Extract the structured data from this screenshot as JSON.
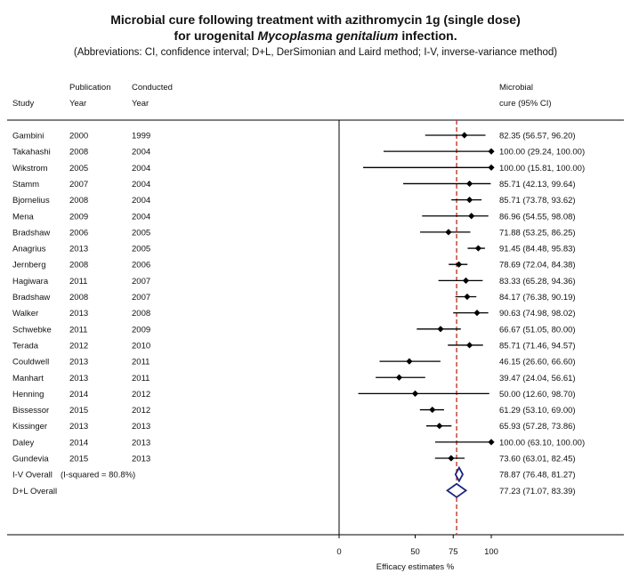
{
  "title_line1": "Microbial cure following treatment with azithromycin 1g (single dose)",
  "title_line2_pre": "for urogenital ",
  "title_line2_italic": "Mycoplasma genitalium",
  "title_line2_post": " infection.",
  "subtitle": "(Abbreviations: CI, confidence interval; D+L, DerSimonian and Laird method; I-V, inverse-variance method)",
  "headers": {
    "study": "Study",
    "pub_line1": "Publication",
    "pub_line2": "Year",
    "cond_line1": "Conducted",
    "cond_line2": "Year",
    "ci_line1": "Microbial",
    "ci_line2": "cure (95% CI)"
  },
  "chart_data": {
    "type": "forest",
    "xlabel": "Efficacy estimates %",
    "xticks": [
      0,
      50,
      75,
      100
    ],
    "xlim": [
      0,
      100
    ],
    "reference_line": 77.23,
    "studies": [
      {
        "study": "Gambini",
        "pub": "2000",
        "cond": "1999",
        "est": 82.35,
        "lo": 56.57,
        "hi": 96.2,
        "label": "82.35 (56.57, 96.20)"
      },
      {
        "study": "Takahashi",
        "pub": "2008",
        "cond": "2004",
        "est": 100.0,
        "lo": 29.24,
        "hi": 100.0,
        "label": "100.00 (29.24, 100.00)"
      },
      {
        "study": "Wikstrom",
        "pub": "2005",
        "cond": "2004",
        "est": 100.0,
        "lo": 15.81,
        "hi": 100.0,
        "label": "100.00 (15.81, 100.00)"
      },
      {
        "study": "Stamm",
        "pub": "2007",
        "cond": "2004",
        "est": 85.71,
        "lo": 42.13,
        "hi": 99.64,
        "label": "85.71 (42.13, 99.64)"
      },
      {
        "study": "Bjornelius",
        "pub": "2008",
        "cond": "2004",
        "est": 85.71,
        "lo": 73.78,
        "hi": 93.62,
        "label": "85.71 (73.78, 93.62)"
      },
      {
        "study": "Mena",
        "pub": "2009",
        "cond": "2004",
        "est": 86.96,
        "lo": 54.55,
        "hi": 98.08,
        "label": "86.96 (54.55, 98.08)"
      },
      {
        "study": "Bradshaw",
        "pub": "2006",
        "cond": "2005",
        "est": 71.88,
        "lo": 53.25,
        "hi": 86.25,
        "label": "71.88 (53.25, 86.25)"
      },
      {
        "study": "Anagrius",
        "pub": "2013",
        "cond": "2005",
        "est": 91.45,
        "lo": 84.48,
        "hi": 95.83,
        "label": "91.45 (84.48, 95.83)"
      },
      {
        "study": "Jernberg",
        "pub": "2008",
        "cond": "2006",
        "est": 78.69,
        "lo": 72.04,
        "hi": 84.38,
        "label": "78.69 (72.04, 84.38)"
      },
      {
        "study": "Hagiwara",
        "pub": "2011",
        "cond": "2007",
        "est": 83.33,
        "lo": 65.28,
        "hi": 94.36,
        "label": "83.33 (65.28, 94.36)"
      },
      {
        "study": "Bradshaw",
        "pub": "2008",
        "cond": "2007",
        "est": 84.17,
        "lo": 76.38,
        "hi": 90.19,
        "label": "84.17 (76.38, 90.19)"
      },
      {
        "study": "Walker",
        "pub": "2013",
        "cond": "2008",
        "est": 90.63,
        "lo": 74.98,
        "hi": 98.02,
        "label": "90.63 (74.98, 98.02)"
      },
      {
        "study": "Schwebke",
        "pub": "2011",
        "cond": "2009",
        "est": 66.67,
        "lo": 51.05,
        "hi": 80.0,
        "label": "66.67 (51.05, 80.00)"
      },
      {
        "study": "Terada",
        "pub": "2012",
        "cond": "2010",
        "est": 85.71,
        "lo": 71.46,
        "hi": 94.57,
        "label": "85.71 (71.46, 94.57)"
      },
      {
        "study": "Couldwell",
        "pub": "2013",
        "cond": "2011",
        "est": 46.15,
        "lo": 26.6,
        "hi": 66.6,
        "label": "46.15 (26.60, 66.60)"
      },
      {
        "study": "Manhart",
        "pub": "2013",
        "cond": "2011",
        "est": 39.47,
        "lo": 24.04,
        "hi": 56.61,
        "label": "39.47 (24.04, 56.61)"
      },
      {
        "study": "Henning",
        "pub": "2014",
        "cond": "2012",
        "est": 50.0,
        "lo": 12.6,
        "hi": 98.7,
        "label": "50.00 (12.60, 98.70)"
      },
      {
        "study": "Bissessor",
        "pub": "2015",
        "cond": "2012",
        "est": 61.29,
        "lo": 53.1,
        "hi": 69.0,
        "label": "61.29 (53.10, 69.00)"
      },
      {
        "study": "Kissinger",
        "pub": "2013",
        "cond": "2013",
        "est": 65.93,
        "lo": 57.28,
        "hi": 73.86,
        "label": "65.93 (57.28, 73.86)"
      },
      {
        "study": "Daley",
        "pub": "2014",
        "cond": "2013",
        "est": 100.0,
        "lo": 63.1,
        "hi": 100.0,
        "label": "100.00 (63.10, 100.00)"
      },
      {
        "study": "Gundevia",
        "pub": "2015",
        "cond": "2013",
        "est": 73.6,
        "lo": 63.01,
        "hi": 82.45,
        "label": "73.60 (63.01, 82.45)"
      }
    ],
    "overall": [
      {
        "study": "I-V Overall",
        "note": "(I-squared = 80.8%)",
        "est": 78.87,
        "lo": 76.48,
        "hi": 81.27,
        "label": "78.87 (76.48, 81.27)"
      },
      {
        "study": "D+L Overall",
        "note": "",
        "est": 77.23,
        "lo": 71.07,
        "hi": 83.39,
        "label": "77.23 (71.07, 83.39)"
      }
    ],
    "colors": {
      "diamond": "#1a237e",
      "reference": "#c0392b",
      "marker": "#000000"
    }
  }
}
